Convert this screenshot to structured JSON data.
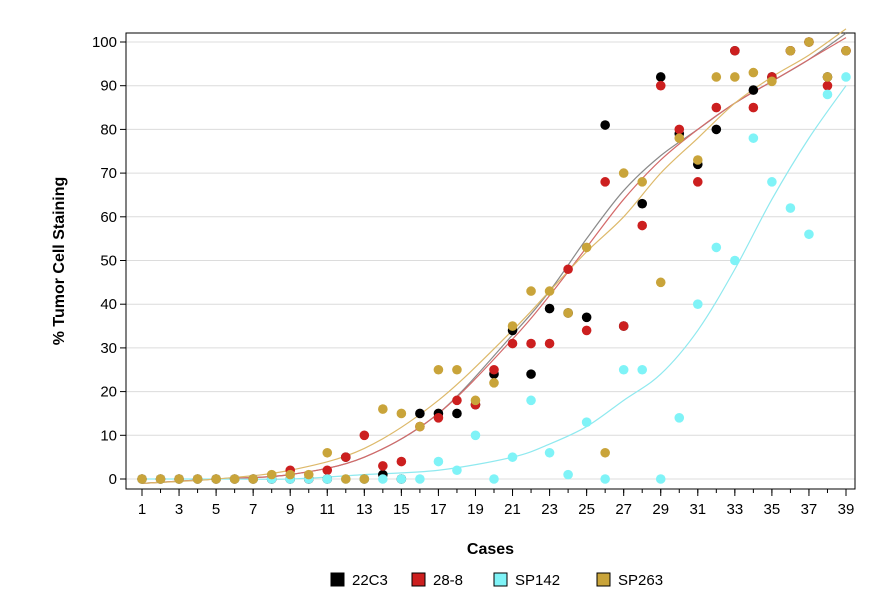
{
  "chart_data": {
    "type": "scatter",
    "title": "",
    "xlabel": "Cases",
    "ylabel": "% Tumor Cell Staining",
    "xlim": [
      1,
      39
    ],
    "ylim": [
      0,
      100
    ],
    "x_ticks": [
      1,
      3,
      5,
      7,
      9,
      11,
      13,
      15,
      17,
      19,
      21,
      23,
      25,
      27,
      29,
      31,
      33,
      35,
      37,
      39
    ],
    "y_ticks": [
      0,
      10,
      20,
      30,
      40,
      50,
      60,
      70,
      80,
      90,
      100
    ],
    "grid": "horizontal",
    "legend_position": "bottom",
    "series": [
      {
        "name": "22C3",
        "color": "#000000",
        "points": [
          [
            1,
            0
          ],
          [
            2,
            0
          ],
          [
            3,
            0
          ],
          [
            4,
            0
          ],
          [
            5,
            0
          ],
          [
            6,
            0
          ],
          [
            7,
            0
          ],
          [
            8,
            0
          ],
          [
            9,
            0
          ],
          [
            10,
            0
          ],
          [
            11,
            0
          ],
          [
            12,
            5
          ],
          [
            13,
            0
          ],
          [
            14,
            1
          ],
          [
            15,
            0
          ],
          [
            16,
            15
          ],
          [
            17,
            15
          ],
          [
            18,
            15
          ],
          [
            19,
            17
          ],
          [
            20,
            24
          ],
          [
            21,
            34
          ],
          [
            22,
            24
          ],
          [
            23,
            39
          ],
          [
            24,
            38
          ],
          [
            25,
            37
          ],
          [
            26,
            81
          ],
          [
            27,
            35
          ],
          [
            28,
            63
          ],
          [
            29,
            92
          ],
          [
            30,
            79
          ],
          [
            31,
            72
          ],
          [
            32,
            80
          ],
          [
            33,
            98
          ],
          [
            34,
            89
          ],
          [
            35,
            92
          ],
          [
            36,
            98
          ],
          [
            37,
            100
          ],
          [
            38,
            92
          ],
          [
            39,
            98
          ]
        ]
      },
      {
        "name": "28-8",
        "color": "#cc1f1f",
        "points": [
          [
            1,
            0
          ],
          [
            2,
            0
          ],
          [
            3,
            0
          ],
          [
            4,
            0
          ],
          [
            5,
            0
          ],
          [
            6,
            0
          ],
          [
            7,
            0
          ],
          [
            8,
            0
          ],
          [
            9,
            2
          ],
          [
            10,
            0
          ],
          [
            11,
            2
          ],
          [
            12,
            5
          ],
          [
            13,
            10
          ],
          [
            14,
            3
          ],
          [
            15,
            4
          ],
          [
            16,
            12
          ],
          [
            17,
            14
          ],
          [
            18,
            18
          ],
          [
            19,
            17
          ],
          [
            20,
            25
          ],
          [
            21,
            31
          ],
          [
            22,
            31
          ],
          [
            23,
            31
          ],
          [
            24,
            48
          ],
          [
            25,
            34
          ],
          [
            26,
            68
          ],
          [
            27,
            35
          ],
          [
            28,
            58
          ],
          [
            29,
            90
          ],
          [
            30,
            80
          ],
          [
            31,
            68
          ],
          [
            32,
            85
          ],
          [
            33,
            98
          ],
          [
            34,
            85
          ],
          [
            35,
            92
          ],
          [
            36,
            98
          ],
          [
            37,
            100
          ],
          [
            38,
            90
          ],
          [
            39,
            98
          ]
        ]
      },
      {
        "name": "SP142",
        "color": "#7ff3f7",
        "points": [
          [
            1,
            0
          ],
          [
            2,
            0
          ],
          [
            3,
            0
          ],
          [
            4,
            0
          ],
          [
            5,
            0
          ],
          [
            6,
            0
          ],
          [
            7,
            0
          ],
          [
            8,
            0
          ],
          [
            9,
            0
          ],
          [
            10,
            0
          ],
          [
            11,
            0
          ],
          [
            12,
            0
          ],
          [
            13,
            0
          ],
          [
            14,
            0
          ],
          [
            15,
            0
          ],
          [
            16,
            0
          ],
          [
            17,
            4
          ],
          [
            18,
            2
          ],
          [
            19,
            10
          ],
          [
            20,
            0
          ],
          [
            21,
            5
          ],
          [
            22,
            18
          ],
          [
            23,
            6
          ],
          [
            24,
            1
          ],
          [
            25,
            13
          ],
          [
            26,
            0
          ],
          [
            27,
            25
          ],
          [
            28,
            25
          ],
          [
            29,
            0
          ],
          [
            30,
            14
          ],
          [
            31,
            40
          ],
          [
            32,
            53
          ],
          [
            33,
            50
          ],
          [
            34,
            78
          ],
          [
            35,
            68
          ],
          [
            36,
            62
          ],
          [
            37,
            56
          ],
          [
            38,
            88
          ],
          [
            39,
            92
          ]
        ]
      },
      {
        "name": "SP263",
        "color": "#c9a43a",
        "points": [
          [
            1,
            0
          ],
          [
            2,
            0
          ],
          [
            3,
            0
          ],
          [
            4,
            0
          ],
          [
            5,
            0
          ],
          [
            6,
            0
          ],
          [
            7,
            0
          ],
          [
            8,
            1
          ],
          [
            9,
            1
          ],
          [
            10,
            1
          ],
          [
            11,
            6
          ],
          [
            12,
            0
          ],
          [
            13,
            0
          ],
          [
            14,
            16
          ],
          [
            15,
            15
          ],
          [
            16,
            12
          ],
          [
            17,
            25
          ],
          [
            18,
            25
          ],
          [
            19,
            18
          ],
          [
            20,
            22
          ],
          [
            21,
            35
          ],
          [
            22,
            43
          ],
          [
            23,
            43
          ],
          [
            24,
            38
          ],
          [
            25,
            53
          ],
          [
            26,
            6
          ],
          [
            27,
            70
          ],
          [
            28,
            68
          ],
          [
            29,
            45
          ],
          [
            30,
            78
          ],
          [
            31,
            73
          ],
          [
            32,
            92
          ],
          [
            33,
            92
          ],
          [
            34,
            93
          ],
          [
            35,
            91
          ],
          [
            36,
            98
          ],
          [
            37,
            100
          ],
          [
            38,
            92
          ],
          [
            39,
            98
          ]
        ]
      }
    ],
    "trend_lines": [
      {
        "series": "22C3",
        "color": "#8a8a8a",
        "x": [
          1,
          5,
          9,
          13,
          17,
          21,
          23,
          25,
          27,
          29,
          31,
          33,
          35,
          37,
          39
        ],
        "y": [
          -1,
          0,
          1,
          5,
          15,
          33,
          43,
          55,
          66,
          74,
          80,
          86,
          91,
          96,
          102
        ]
      },
      {
        "series": "28-8",
        "color": "#d46a6a",
        "x": [
          1,
          5,
          9,
          13,
          17,
          21,
          23,
          25,
          27,
          29,
          31,
          33,
          35,
          37,
          39
        ],
        "y": [
          -1,
          0,
          1,
          5,
          15,
          32,
          42,
          53,
          64,
          73,
          80,
          86,
          91,
          96,
          101
        ]
      },
      {
        "series": "SP142",
        "color": "#8fe9ef",
        "x": [
          1,
          5,
          9,
          13,
          17,
          21,
          23,
          25,
          27,
          29,
          31,
          33,
          35,
          37,
          39
        ],
        "y": [
          0,
          0,
          0,
          1,
          2,
          5,
          8,
          12,
          18,
          24,
          34,
          48,
          64,
          78,
          90
        ]
      },
      {
        "series": "SP263",
        "color": "#ddb96a",
        "x": [
          1,
          5,
          9,
          13,
          17,
          21,
          23,
          25,
          27,
          29,
          31,
          33,
          35,
          37,
          39
        ],
        "y": [
          -1,
          0,
          2,
          7,
          18,
          34,
          43,
          52,
          60,
          70,
          78,
          86,
          92,
          97,
          103
        ]
      }
    ]
  }
}
